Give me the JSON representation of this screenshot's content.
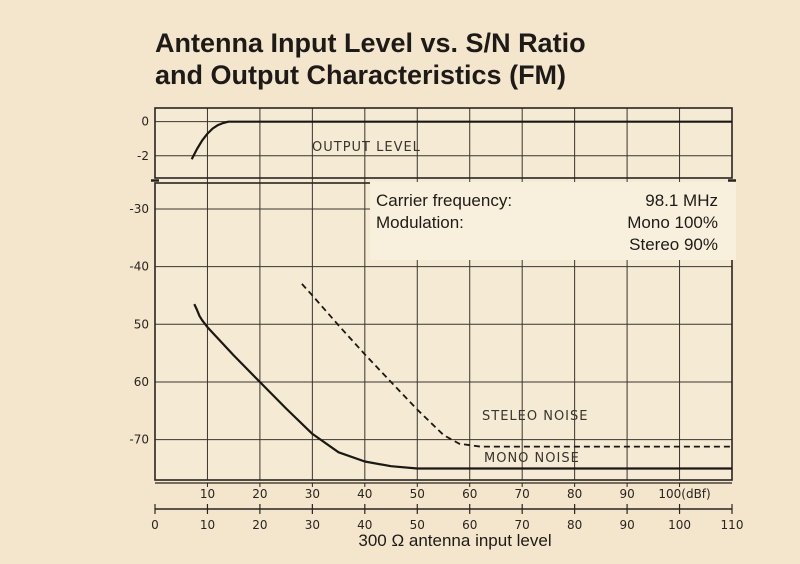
{
  "chart_data": {
    "type": "line",
    "title": [
      "Antenna Input Level vs. S/N Ratio",
      "and Output Characteristics (FM)"
    ],
    "xlabel": "300 Ω antenna input level",
    "x_top_ticks": [
      "10",
      "20",
      "30",
      "40",
      "50",
      "60",
      "70",
      "80",
      "90",
      "100(dBf)"
    ],
    "x_bottom_ticks": [
      "0",
      "10",
      "20",
      "30",
      "40",
      "50",
      "60",
      "70",
      "80",
      "90",
      "100",
      "110"
    ],
    "xlim": [
      0,
      110
    ],
    "output_panel": {
      "ticks": [
        "0",
        "-2"
      ],
      "ylim": [
        -3.3,
        0.8
      ]
    },
    "noise_panel": {
      "ticks": [
        "-30",
        "-40",
        "50",
        "60",
        "-70"
      ],
      "ylim": [
        -77,
        -25.5
      ]
    },
    "annotations": {
      "carrier_label": "Carrier frequency:",
      "carrier_value": "98.1 MHz",
      "modulation_label": "Modulation:",
      "mono_value": "Mono 100%",
      "stereo_value": "Stereo 90%"
    },
    "series": [
      {
        "name": "OUTPUT LEVEL",
        "panel": "output",
        "style": "solid",
        "x": [
          7,
          8,
          9,
          10,
          11,
          12,
          13,
          14,
          16,
          20,
          30,
          50,
          80,
          110
        ],
        "y": [
          -2.2,
          -1.6,
          -1.1,
          -0.7,
          -0.4,
          -0.2,
          -0.08,
          0,
          0,
          0,
          0,
          0,
          0,
          0
        ]
      },
      {
        "name": "MONO NOISE",
        "panel": "noise",
        "style": "solid",
        "x": [
          7.5,
          8,
          8.5,
          9,
          10,
          15,
          20,
          25,
          30,
          35,
          40,
          45,
          50,
          55,
          60,
          70,
          80,
          90,
          100,
          110
        ],
        "y": [
          -46.5,
          -47.5,
          -48.6,
          -49.3,
          -50.5,
          -55.4,
          -60,
          -64.6,
          -69,
          -72.2,
          -73.8,
          -74.6,
          -75,
          -75,
          -75,
          -75,
          -75,
          -75,
          -75,
          -75
        ]
      },
      {
        "name": "STELEO NOISE",
        "panel": "noise",
        "style": "dashed",
        "x": [
          28,
          30,
          35,
          40,
          45,
          50,
          55,
          58,
          62,
          70,
          80,
          90,
          100,
          110
        ],
        "y": [
          -43,
          -45,
          -50.2,
          -55.2,
          -60,
          -64.8,
          -69.2,
          -70.7,
          -71.2,
          -71.2,
          -71.2,
          -71.2,
          -71.2,
          -71.2
        ]
      }
    ],
    "grid": true
  }
}
